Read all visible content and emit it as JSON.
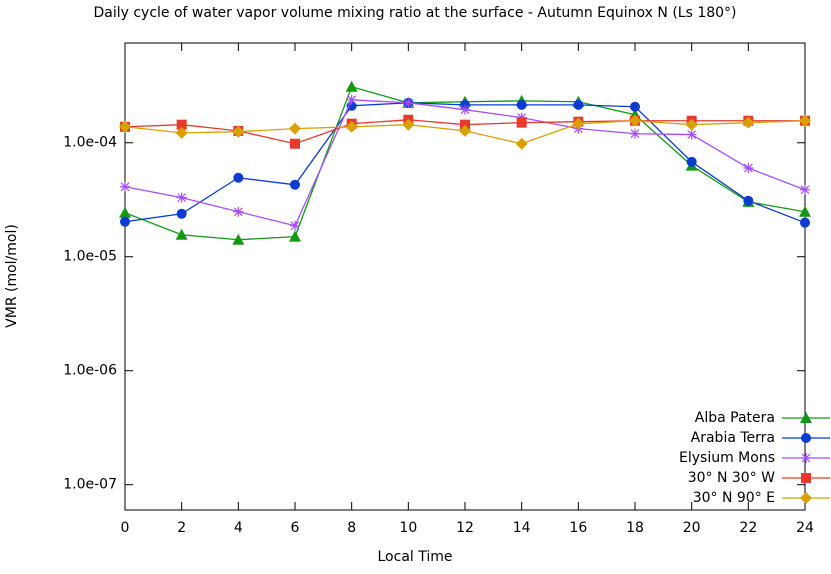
{
  "chart_data": {
    "type": "line",
    "title": "Daily cycle of water vapor volume mixing ratio at the surface - Autumn Equinox N (Ls 180°)",
    "xlabel": "Local Time",
    "ylabel": "VMR (mol/mol)",
    "x": [
      0,
      2,
      4,
      6,
      8,
      10,
      12,
      14,
      16,
      18,
      20,
      22,
      24
    ],
    "xlim": [
      0,
      24
    ],
    "xticks": [
      0,
      2,
      4,
      6,
      8,
      10,
      12,
      14,
      16,
      18,
      20,
      22,
      24
    ],
    "ylim": [
      6e-08,
      0.00075
    ],
    "ylog": true,
    "yticks": [
      {
        "value": 1e-07,
        "label": "1.0e-07"
      },
      {
        "value": 1e-06,
        "label": "1.0e-06"
      },
      {
        "value": 1e-05,
        "label": "1.0e-05"
      },
      {
        "value": 0.0001,
        "label": "1.0e-04"
      }
    ],
    "legend": "bottom right",
    "series": [
      {
        "name": "Alba Patera",
        "color": "#119a11",
        "marker": "triangle",
        "values": [
          2.43e-05,
          1.56e-05,
          1.41e-05,
          1.5e-05,
          0.00031,
          0.000224,
          0.000229,
          0.000233,
          0.000229,
          0.000176,
          6.3e-05,
          3.03e-05,
          2.48e-05
        ]
      },
      {
        "name": "Arabia Terra",
        "color": "#0a3cd2",
        "marker": "circle",
        "values": [
          2.03e-05,
          2.38e-05,
          4.93e-05,
          4.28e-05,
          0.000211,
          0.000224,
          0.000215,
          0.000215,
          0.000215,
          0.000207,
          6.8e-05,
          3.1e-05,
          1.99e-05
        ]
      },
      {
        "name": "Elysium Mons",
        "color": "#a64dff",
        "marker": "star",
        "values": [
          4.11e-05,
          3.3e-05,
          2.48e-05,
          1.87e-05,
          0.000238,
          0.000224,
          0.000195,
          0.000166,
          0.000133,
          0.00012,
          0.000118,
          6e-05,
          3.87e-05
        ]
      },
      {
        "name": "30° N 30° W",
        "color": "#e53a2c",
        "marker": "square",
        "values": [
          0.000138,
          0.000144,
          0.000127,
          9.8e-05,
          0.000147,
          0.000159,
          0.000144,
          0.00015,
          0.000153,
          0.000156,
          0.000156,
          0.000156,
          0.000156
        ]
      },
      {
        "name": "30° N 90° E",
        "color": "#d9a000",
        "marker": "diamond",
        "values": [
          0.000138,
          0.000122,
          0.000125,
          0.000133,
          0.000138,
          0.000144,
          0.000127,
          9.8e-05,
          0.000147,
          0.000156,
          0.000144,
          0.00015,
          0.000156
        ]
      }
    ]
  }
}
